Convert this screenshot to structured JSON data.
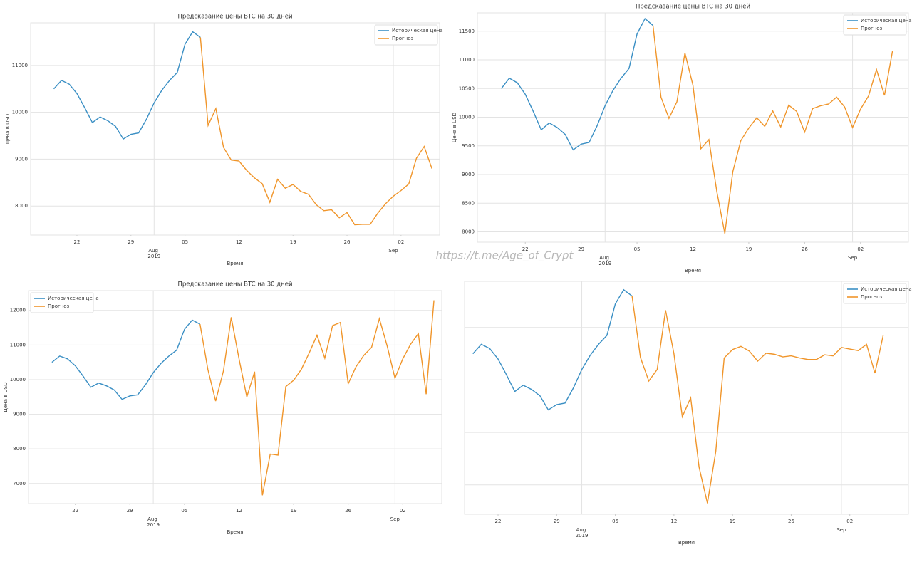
{
  "watermark": "https://t.me/Age_of_Crypt",
  "chart_data": [
    {
      "type": "line",
      "title": "Предсказание цены BTC на 30 дней",
      "ylabel": "Цена в USD",
      "xlabel": "Время",
      "x": [
        "2019-07-19",
        "2019-07-20",
        "2019-07-21",
        "2019-07-22",
        "2019-07-23",
        "2019-07-24",
        "2019-07-25",
        "2019-07-26",
        "2019-07-27",
        "2019-07-28",
        "2019-07-29",
        "2019-07-30",
        "2019-07-31",
        "2019-08-01",
        "2019-08-02",
        "2019-08-03",
        "2019-08-04",
        "2019-08-05",
        "2019-08-06",
        "2019-08-07",
        "2019-08-08",
        "2019-08-09",
        "2019-08-10",
        "2019-08-11",
        "2019-08-12",
        "2019-08-13",
        "2019-08-14",
        "2019-08-15",
        "2019-08-16",
        "2019-08-17",
        "2019-08-18",
        "2019-08-19",
        "2019-08-20",
        "2019-08-21",
        "2019-08-22",
        "2019-08-23",
        "2019-08-24",
        "2019-08-25",
        "2019-08-26",
        "2019-08-27",
        "2019-08-28",
        "2019-08-29",
        "2019-08-30",
        "2019-08-31",
        "2019-09-01",
        "2019-09-02",
        "2019-09-03",
        "2019-09-04",
        "2019-09-05",
        "2019-09-06"
      ],
      "series": [
        {
          "name": "Историческая цена",
          "color": "#3a8fc4",
          "values": [
            10500,
            10680,
            10600,
            10400,
            10100,
            9780,
            9900,
            9820,
            9700,
            9430,
            9530,
            9560,
            9850,
            10200,
            10470,
            10680,
            10850,
            11450,
            11720,
            11600,
            null,
            null,
            null,
            null,
            null,
            null,
            null,
            null,
            null,
            null,
            null,
            null,
            null,
            null,
            null,
            null,
            null,
            null,
            null,
            null,
            null,
            null,
            null,
            null,
            null,
            null,
            null,
            null,
            null,
            null
          ]
        },
        {
          "name": "Прогноз",
          "color": "#f0952a",
          "values": [
            null,
            null,
            null,
            null,
            null,
            null,
            null,
            null,
            null,
            null,
            null,
            null,
            null,
            null,
            null,
            null,
            null,
            null,
            null,
            11600,
            9720,
            10080,
            9250,
            8980,
            8960,
            8760,
            8600,
            8480,
            8080,
            8570,
            8380,
            8460,
            8310,
            8250,
            8030,
            7900,
            7920,
            7750,
            7860,
            7600,
            7610,
            7610,
            7850,
            8050,
            8210,
            8330,
            8470,
            9020,
            9270,
            8800
          ]
        }
      ],
      "xlim": [
        "2019-07-16",
        "2019-09-07"
      ],
      "xticks": [
        {
          "value": "2019-07-22",
          "label": "22"
        },
        {
          "value": "2019-07-29",
          "label": "29"
        },
        {
          "value": "2019-08-05",
          "label": "05"
        },
        {
          "value": "2019-08-12",
          "label": "12"
        },
        {
          "value": "2019-08-19",
          "label": "19"
        },
        {
          "value": "2019-08-26",
          "label": "26"
        },
        {
          "value": "2019-09-02",
          "label": "02"
        }
      ],
      "xticks_major": [
        {
          "value": "2019-08-01",
          "label": "Aug\n2019"
        },
        {
          "value": "2019-09-01",
          "label": "Sep"
        }
      ],
      "ylim": [
        7380,
        11910
      ],
      "yticks": [
        8000,
        9000,
        10000,
        11000
      ],
      "ytick_labels": true,
      "grid": true,
      "legend": "upper right"
    },
    {
      "type": "line",
      "title": "Предсказание цены BTC на 30 дней",
      "ylabel": "Цена в USD",
      "xlabel": "Время",
      "x": [
        "2019-07-19",
        "2019-07-20",
        "2019-07-21",
        "2019-07-22",
        "2019-07-23",
        "2019-07-24",
        "2019-07-25",
        "2019-07-26",
        "2019-07-27",
        "2019-07-28",
        "2019-07-29",
        "2019-07-30",
        "2019-07-31",
        "2019-08-01",
        "2019-08-02",
        "2019-08-03",
        "2019-08-04",
        "2019-08-05",
        "2019-08-06",
        "2019-08-07",
        "2019-08-08",
        "2019-08-09",
        "2019-08-10",
        "2019-08-11",
        "2019-08-12",
        "2019-08-13",
        "2019-08-14",
        "2019-08-15",
        "2019-08-16",
        "2019-08-17",
        "2019-08-18",
        "2019-08-19",
        "2019-08-20",
        "2019-08-21",
        "2019-08-22",
        "2019-08-23",
        "2019-08-24",
        "2019-08-25",
        "2019-08-26",
        "2019-08-27",
        "2019-08-28",
        "2019-08-29",
        "2019-08-30",
        "2019-08-31",
        "2019-09-01",
        "2019-09-02",
        "2019-09-03",
        "2019-09-04",
        "2019-09-05",
        "2019-09-06"
      ],
      "series": [
        {
          "name": "Историческая цена",
          "color": "#3a8fc4",
          "values": [
            10500,
            10680,
            10600,
            10400,
            10100,
            9780,
            9900,
            9820,
            9700,
            9430,
            9530,
            9560,
            9850,
            10200,
            10470,
            10680,
            10850,
            11450,
            11720,
            11600,
            null,
            null,
            null,
            null,
            null,
            null,
            null,
            null,
            null,
            null,
            null,
            null,
            null,
            null,
            null,
            null,
            null,
            null,
            null,
            null,
            null,
            null,
            null,
            null,
            null,
            null,
            null,
            null,
            null,
            null
          ]
        },
        {
          "name": "Прогноз",
          "color": "#f0952a",
          "values": [
            null,
            null,
            null,
            null,
            null,
            null,
            null,
            null,
            null,
            null,
            null,
            null,
            null,
            null,
            null,
            null,
            null,
            null,
            null,
            11600,
            10350,
            9980,
            10270,
            11120,
            10560,
            9450,
            9610,
            8700,
            7970,
            9050,
            9590,
            9810,
            9990,
            9840,
            10110,
            9830,
            10210,
            10100,
            9740,
            10150,
            10200,
            10230,
            10350,
            10180,
            9820,
            10140,
            10370,
            10830,
            10380,
            11150
          ]
        }
      ],
      "xlim": [
        "2019-07-16",
        "2019-09-08"
      ],
      "xticks": [
        {
          "value": "2019-07-22",
          "label": "22"
        },
        {
          "value": "2019-07-29",
          "label": "29"
        },
        {
          "value": "2019-08-05",
          "label": "05"
        },
        {
          "value": "2019-08-12",
          "label": "12"
        },
        {
          "value": "2019-08-19",
          "label": "19"
        },
        {
          "value": "2019-08-26",
          "label": "26"
        },
        {
          "value": "2019-09-02",
          "label": "02"
        }
      ],
      "xticks_major": [
        {
          "value": "2019-08-01",
          "label": "Aug\n2019"
        },
        {
          "value": "2019-09-01",
          "label": "Sep"
        }
      ],
      "ylim": [
        7820,
        11820
      ],
      "yticks": [
        8000,
        8500,
        9000,
        9500,
        10000,
        10500,
        11000,
        11500
      ],
      "ytick_labels": true,
      "grid": true,
      "legend": "upper right"
    },
    {
      "type": "line",
      "title": "Предсказание цены BTC на 30 дней",
      "ylabel": "Цена в USD",
      "xlabel": "Время",
      "x": [
        "2019-07-19",
        "2019-07-20",
        "2019-07-21",
        "2019-07-22",
        "2019-07-23",
        "2019-07-24",
        "2019-07-25",
        "2019-07-26",
        "2019-07-27",
        "2019-07-28",
        "2019-07-29",
        "2019-07-30",
        "2019-07-31",
        "2019-08-01",
        "2019-08-02",
        "2019-08-03",
        "2019-08-04",
        "2019-08-05",
        "2019-08-06",
        "2019-08-07",
        "2019-08-08",
        "2019-08-09",
        "2019-08-10",
        "2019-08-11",
        "2019-08-12",
        "2019-08-13",
        "2019-08-14",
        "2019-08-15",
        "2019-08-16",
        "2019-08-17",
        "2019-08-18",
        "2019-08-19",
        "2019-08-20",
        "2019-08-21",
        "2019-08-22",
        "2019-08-23",
        "2019-08-24",
        "2019-08-25",
        "2019-08-26",
        "2019-08-27",
        "2019-08-28",
        "2019-08-29",
        "2019-08-30",
        "2019-08-31",
        "2019-09-01",
        "2019-09-02",
        "2019-09-03",
        "2019-09-04",
        "2019-09-05",
        "2019-09-06"
      ],
      "series": [
        {
          "name": "Историческая цена",
          "color": "#3a8fc4",
          "values": [
            10500,
            10680,
            10600,
            10400,
            10100,
            9780,
            9900,
            9820,
            9700,
            9430,
            9530,
            9560,
            9850,
            10200,
            10470,
            10680,
            10850,
            11450,
            11720,
            11600,
            null,
            null,
            null,
            null,
            null,
            null,
            null,
            null,
            null,
            null,
            null,
            null,
            null,
            null,
            null,
            null,
            null,
            null,
            null,
            null,
            null,
            null,
            null,
            null,
            null,
            null,
            null,
            null,
            null,
            null
          ]
        },
        {
          "name": "Прогноз",
          "color": "#f0952a",
          "values": [
            null,
            null,
            null,
            null,
            null,
            null,
            null,
            null,
            null,
            null,
            null,
            null,
            null,
            null,
            null,
            null,
            null,
            null,
            null,
            11600,
            10300,
            9380,
            10250,
            11800,
            10600,
            9500,
            10230,
            6660,
            7850,
            7820,
            9800,
            9980,
            10300,
            10770,
            11280,
            10620,
            11560,
            11650,
            9880,
            10370,
            10700,
            10930,
            11760,
            10970,
            10040,
            10600,
            11020,
            11330,
            9580,
            12290
          ]
        }
      ],
      "xlim": [
        "2019-07-16",
        "2019-09-07"
      ],
      "xticks": [
        {
          "value": "2019-07-22",
          "label": "22"
        },
        {
          "value": "2019-07-29",
          "label": "29"
        },
        {
          "value": "2019-08-05",
          "label": "05"
        },
        {
          "value": "2019-08-12",
          "label": "12"
        },
        {
          "value": "2019-08-19",
          "label": "19"
        },
        {
          "value": "2019-08-26",
          "label": "26"
        },
        {
          "value": "2019-09-02",
          "label": "02"
        }
      ],
      "xticks_major": [
        {
          "value": "2019-08-01",
          "label": "Aug\n2019"
        },
        {
          "value": "2019-09-01",
          "label": "Sep"
        }
      ],
      "ylim": [
        6420,
        12570
      ],
      "yticks": [
        7000,
        8000,
        9000,
        10000,
        11000,
        12000
      ],
      "ytick_labels": true,
      "grid": true,
      "legend": "upper left"
    },
    {
      "type": "line",
      "xlabel": "Время",
      "x": [
        "2019-07-19",
        "2019-07-20",
        "2019-07-21",
        "2019-07-22",
        "2019-07-23",
        "2019-07-24",
        "2019-07-25",
        "2019-07-26",
        "2019-07-27",
        "2019-07-28",
        "2019-07-29",
        "2019-07-30",
        "2019-07-31",
        "2019-08-01",
        "2019-08-02",
        "2019-08-03",
        "2019-08-04",
        "2019-08-05",
        "2019-08-06",
        "2019-08-07",
        "2019-08-08",
        "2019-08-09",
        "2019-08-10",
        "2019-08-11",
        "2019-08-12",
        "2019-08-13",
        "2019-08-14",
        "2019-08-15",
        "2019-08-16",
        "2019-08-17",
        "2019-08-18",
        "2019-08-19",
        "2019-08-20",
        "2019-08-21",
        "2019-08-22",
        "2019-08-23",
        "2019-08-24",
        "2019-08-25",
        "2019-08-26",
        "2019-08-27",
        "2019-08-28",
        "2019-08-29",
        "2019-08-30",
        "2019-08-31",
        "2019-09-01",
        "2019-09-02",
        "2019-09-03",
        "2019-09-04",
        "2019-09-05",
        "2019-09-06"
      ],
      "series": [
        {
          "name": "Историческая цена",
          "color": "#3a8fc4",
          "values": [
            10500,
            10680,
            10600,
            10400,
            10100,
            9780,
            9900,
            9820,
            9700,
            9430,
            9530,
            9560,
            9850,
            10200,
            10470,
            10680,
            10850,
            11450,
            11720,
            11600,
            null,
            null,
            null,
            null,
            null,
            null,
            null,
            null,
            null,
            null,
            null,
            null,
            null,
            null,
            null,
            null,
            null,
            null,
            null,
            null,
            null,
            null,
            null,
            null,
            null,
            null,
            null,
            null,
            null,
            null
          ]
        },
        {
          "name": "Прогноз",
          "color": "#f0952a",
          "values": [
            null,
            null,
            null,
            null,
            null,
            null,
            null,
            null,
            null,
            null,
            null,
            null,
            null,
            null,
            null,
            null,
            null,
            null,
            null,
            11600,
            10430,
            9980,
            10200,
            11330,
            10500,
            9300,
            9660,
            8340,
            7650,
            8640,
            10420,
            10580,
            10640,
            10550,
            10360,
            10510,
            10490,
            10440,
            10460,
            10420,
            10390,
            10390,
            10480,
            10460,
            10620,
            10590,
            10560,
            10680,
            10130,
            10860
          ]
        }
      ],
      "xlim": [
        "2019-07-18",
        "2019-09-09"
      ],
      "xticks": [
        {
          "value": "2019-07-22",
          "label": "22"
        },
        {
          "value": "2019-07-29",
          "label": "29"
        },
        {
          "value": "2019-08-05",
          "label": "05"
        },
        {
          "value": "2019-08-12",
          "label": "12"
        },
        {
          "value": "2019-08-19",
          "label": "19"
        },
        {
          "value": "2019-08-26",
          "label": "26"
        },
        {
          "value": "2019-09-02",
          "label": "02"
        }
      ],
      "xticks_major": [
        {
          "value": "2019-08-01",
          "label": "Aug\n2019"
        },
        {
          "value": "2019-09-01",
          "label": "Sep"
        }
      ],
      "ylim": [
        7440,
        11880
      ],
      "yticks": [
        8000,
        9000,
        10000,
        11000
      ],
      "ytick_labels": false,
      "grid": true,
      "legend": "upper right"
    }
  ]
}
